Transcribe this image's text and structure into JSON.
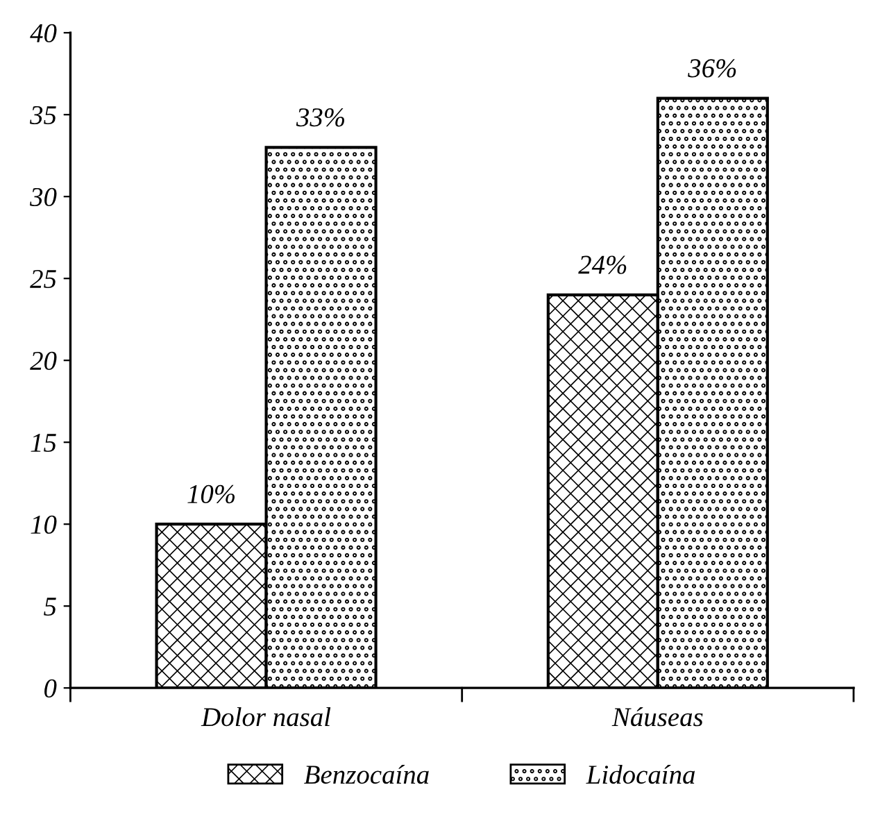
{
  "chart_data": {
    "type": "bar",
    "categories": [
      "Dolor nasal",
      "Náuseas"
    ],
    "series": [
      {
        "name": "Benzocaína",
        "color": "#000000",
        "values": [
          10,
          24
        ],
        "value_labels": [
          "10%",
          "24%"
        ]
      },
      {
        "name": "Lidocaína",
        "color": "#000000",
        "values": [
          33,
          36
        ],
        "value_labels": [
          "33%",
          "36%"
        ]
      }
    ],
    "ylim": [
      0,
      40
    ],
    "yticks": [
      0,
      5,
      10,
      15,
      20,
      25,
      30,
      35,
      40
    ],
    "grid": false,
    "legend": "bottom"
  }
}
